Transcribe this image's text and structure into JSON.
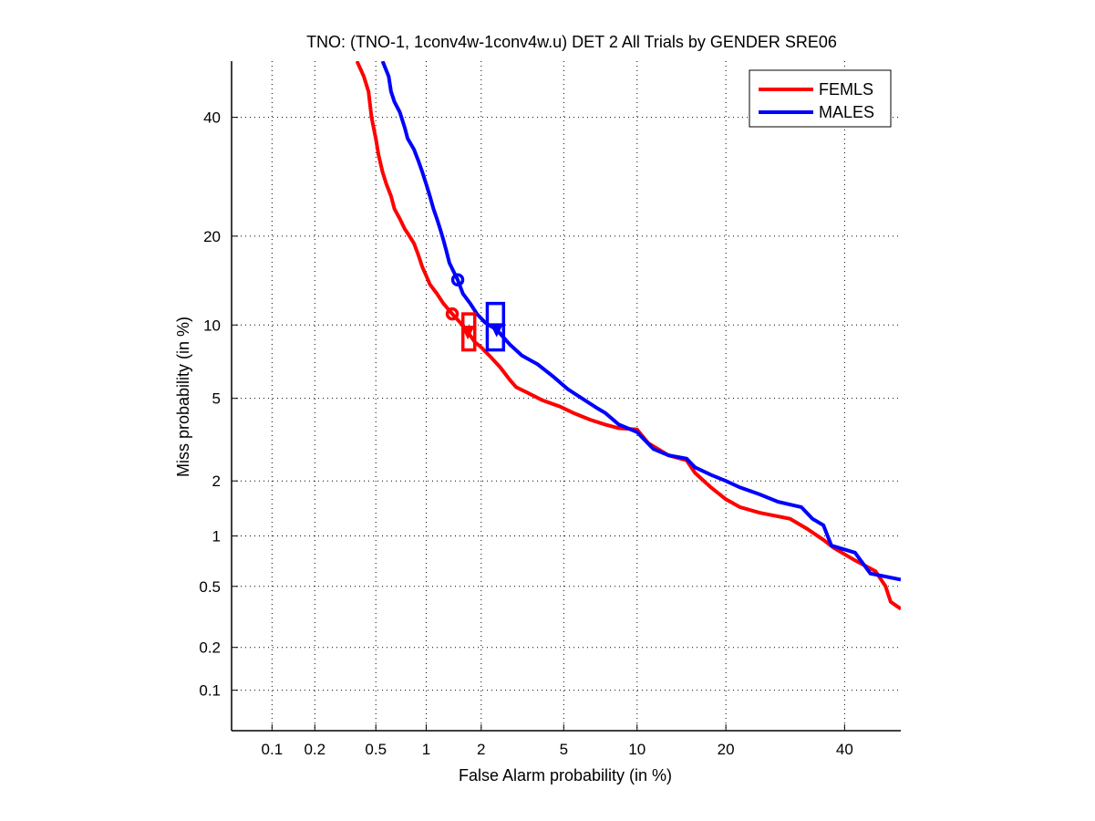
{
  "chart_data": {
    "type": "line",
    "scale": "normal-deviate (DET)",
    "title": "TNO: (TNO-1, 1conv4w-1conv4w.u) DET 2 All Trials by GENDER SRE06",
    "xlabel": "False Alarm probability (in %)",
    "ylabel": "Miss probability (in %)",
    "xlim": [
      0.05,
      51
    ],
    "ylim": [
      0.05,
      51
    ],
    "grid": true,
    "legend_position": "top-right",
    "xticks": [
      0.1,
      0.2,
      0.5,
      1,
      2,
      5,
      10,
      20,
      40
    ],
    "xtick_labels": [
      "0.1",
      "0.2",
      "0.5",
      "1",
      "2",
      "5",
      "10",
      "20",
      "40"
    ],
    "yticks": [
      0.1,
      0.2,
      0.5,
      1,
      2,
      5,
      10,
      20,
      40
    ],
    "ytick_labels": [
      "0.1",
      "0.2",
      "0.5",
      "1",
      "2",
      "5",
      "10",
      "20",
      "40"
    ],
    "series": [
      {
        "name": "FEMLS",
        "color": "#ff0000",
        "points": [
          [
            0.38,
            51
          ],
          [
            0.42,
            48
          ],
          [
            0.45,
            45
          ],
          [
            0.47,
            40
          ],
          [
            0.5,
            36
          ],
          [
            0.52,
            33
          ],
          [
            0.55,
            30
          ],
          [
            0.58,
            28
          ],
          [
            0.62,
            26
          ],
          [
            0.65,
            24
          ],
          [
            0.7,
            22.5
          ],
          [
            0.75,
            21
          ],
          [
            0.8,
            20
          ],
          [
            0.85,
            19
          ],
          [
            0.9,
            17.5
          ],
          [
            0.95,
            16
          ],
          [
            1.0,
            15
          ],
          [
            1.05,
            14
          ],
          [
            1.15,
            13
          ],
          [
            1.25,
            12
          ],
          [
            1.4,
            11
          ],
          [
            1.55,
            10.2
          ],
          [
            1.7,
            9.4
          ],
          [
            1.85,
            8.6
          ],
          [
            2.0,
            8.2
          ],
          [
            2.2,
            7.6
          ],
          [
            2.5,
            6.8
          ],
          [
            2.8,
            6.0
          ],
          [
            3.0,
            5.6
          ],
          [
            3.4,
            5.3
          ],
          [
            4.0,
            4.9
          ],
          [
            4.8,
            4.6
          ],
          [
            5.5,
            4.3
          ],
          [
            6.5,
            4.0
          ],
          [
            7.5,
            3.8
          ],
          [
            8.5,
            3.65
          ],
          [
            10.0,
            3.6
          ],
          [
            11.0,
            3.1
          ],
          [
            13.0,
            2.7
          ],
          [
            15.0,
            2.55
          ],
          [
            16.0,
            2.2
          ],
          [
            18.0,
            1.85
          ],
          [
            20.0,
            1.6
          ],
          [
            22.0,
            1.45
          ],
          [
            25.0,
            1.35
          ],
          [
            30.0,
            1.25
          ],
          [
            33.0,
            1.1
          ],
          [
            36.0,
            0.95
          ],
          [
            38.0,
            0.85
          ],
          [
            42.0,
            0.72
          ],
          [
            46.0,
            0.62
          ],
          [
            48.0,
            0.5
          ],
          [
            49.0,
            0.4
          ],
          [
            51.0,
            0.36
          ]
        ],
        "min_dcf_point": [
          1.4,
          11.0
        ],
        "actual_dcf_point": [
          1.7,
          9.4
        ],
        "act_dcf_box": {
          "fa": [
            1.6,
            1.85
          ],
          "miss": [
            8.0,
            11.0
          ]
        }
      },
      {
        "name": "MALES",
        "color": "#0000ff",
        "points": [
          [
            0.55,
            51
          ],
          [
            0.6,
            48
          ],
          [
            0.62,
            45
          ],
          [
            0.65,
            43
          ],
          [
            0.7,
            41
          ],
          [
            0.75,
            38
          ],
          [
            0.78,
            36
          ],
          [
            0.85,
            34
          ],
          [
            0.9,
            32
          ],
          [
            0.95,
            30
          ],
          [
            1.0,
            28
          ],
          [
            1.05,
            26
          ],
          [
            1.1,
            24
          ],
          [
            1.15,
            22.5
          ],
          [
            1.2,
            21
          ],
          [
            1.25,
            19.5
          ],
          [
            1.3,
            18
          ],
          [
            1.35,
            16.5
          ],
          [
            1.42,
            15.5
          ],
          [
            1.5,
            14.5
          ],
          [
            1.6,
            13.0
          ],
          [
            1.75,
            12.0
          ],
          [
            1.9,
            11.0
          ],
          [
            2.1,
            10.2
          ],
          [
            2.4,
            9.6
          ],
          [
            2.8,
            8.4
          ],
          [
            3.2,
            7.6
          ],
          [
            3.8,
            7.0
          ],
          [
            4.5,
            6.2
          ],
          [
            5.2,
            5.5
          ],
          [
            6.0,
            5.0
          ],
          [
            7.0,
            4.5
          ],
          [
            7.5,
            4.3
          ],
          [
            8.5,
            3.8
          ],
          [
            10.0,
            3.5
          ],
          [
            11.5,
            2.9
          ],
          [
            13.0,
            2.7
          ],
          [
            15.0,
            2.6
          ],
          [
            16.0,
            2.35
          ],
          [
            18.0,
            2.15
          ],
          [
            20.0,
            2.0
          ],
          [
            22.0,
            1.85
          ],
          [
            25.0,
            1.7
          ],
          [
            28.0,
            1.55
          ],
          [
            32.0,
            1.45
          ],
          [
            34.0,
            1.25
          ],
          [
            36.0,
            1.15
          ],
          [
            37.5,
            0.88
          ],
          [
            42.0,
            0.8
          ],
          [
            45.0,
            0.6
          ],
          [
            51.0,
            0.55
          ]
        ],
        "min_dcf_point": [
          1.5,
          14.5
        ],
        "actual_dcf_point": [
          2.4,
          9.6
        ],
        "act_dcf_box": {
          "fa": [
            2.15,
            2.6
          ],
          "miss": [
            8.0,
            12.0
          ]
        }
      }
    ]
  }
}
